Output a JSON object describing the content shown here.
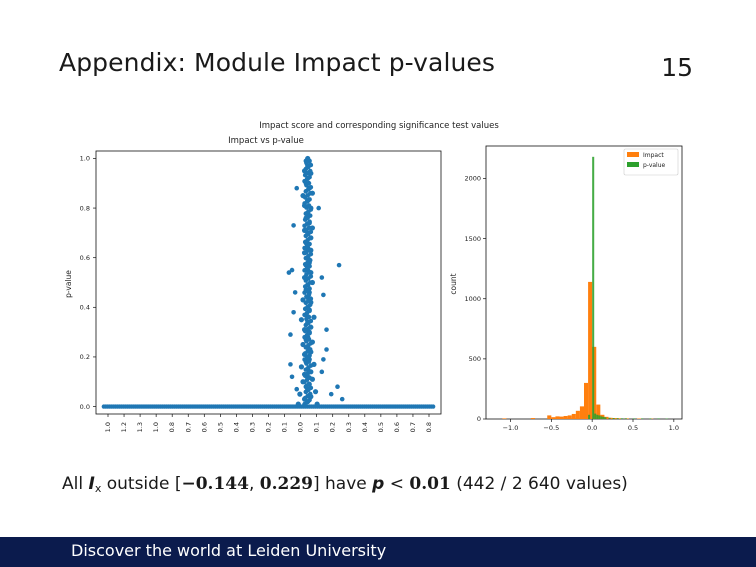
{
  "slide": {
    "title": "Appendix: Module Impact p-values",
    "page_number": "15"
  },
  "caption": {
    "prefix": "All ",
    "var_i": "I",
    "var_sub": "x",
    "mid": " outside ",
    "interval_open": "[",
    "interval_lo": "−0.144",
    "interval_comma": ", ",
    "interval_hi": "0.229",
    "interval_close": "]",
    "have": " have ",
    "var_p": "p",
    "lt": " < ",
    "threshold": "0.01",
    "counts": " (442 / 2 640 values)"
  },
  "footer": {
    "text": "Discover the world at Leiden University"
  },
  "colors": {
    "footer_bg": "#0b1b4d",
    "scatter": "#1f77b4",
    "impact": "#ff7f0e",
    "pvalue": "#2ca02c"
  },
  "chart_data": [
    {
      "type": "scatter",
      "suptitle": "Impact score and corresponding significance test values",
      "title": "Impact vs p-value",
      "xlabel": "",
      "ylabel": "p-value",
      "x_tick_labels": [
        "1.0",
        "1.2",
        "1.3",
        "1.0",
        "0.8",
        "0.7",
        "0.6",
        "0.5",
        "0.4",
        "0.3",
        "0.2",
        "0.1",
        "0.0",
        "0.1",
        "0.2",
        "0.3",
        "0.4",
        "0.5",
        "0.6",
        "0.7",
        "0.8"
      ],
      "y_ticks": [
        0.0,
        0.2,
        0.4,
        0.6,
        0.8,
        1.0
      ],
      "y_tick_labels": [
        "0.0",
        "0.2",
        "0.4",
        "0.6",
        "0.8",
        "1.0"
      ],
      "xlim": [
        -1.35,
        0.85
      ],
      "ylim": [
        -0.03,
        1.03
      ],
      "grid": false,
      "cluster_spine": {
        "x_center": 0.0,
        "points": [
          [
            0.0,
            1.0
          ],
          [
            -0.01,
            0.99
          ],
          [
            0.01,
            0.99
          ],
          [
            0.0,
            0.97
          ],
          [
            -0.02,
            0.95
          ],
          [
            0.02,
            0.94
          ],
          [
            0.0,
            0.92
          ],
          [
            -0.01,
            0.9
          ],
          [
            0.01,
            0.88
          ],
          [
            0.03,
            0.86
          ],
          [
            -0.03,
            0.85
          ],
          [
            0.0,
            0.83
          ],
          [
            -0.02,
            0.81
          ],
          [
            0.02,
            0.8
          ],
          [
            0.0,
            0.78
          ],
          [
            -0.01,
            0.76
          ],
          [
            0.01,
            0.74
          ],
          [
            0.03,
            0.72
          ],
          [
            -0.02,
            0.71
          ],
          [
            0.0,
            0.7
          ],
          [
            0.02,
            0.68
          ],
          [
            -0.01,
            0.66
          ],
          [
            0.0,
            0.64
          ],
          [
            0.02,
            0.63
          ],
          [
            -0.02,
            0.62
          ],
          [
            0.0,
            0.6
          ],
          [
            0.01,
            0.58
          ],
          [
            -0.01,
            0.57
          ],
          [
            0.0,
            0.55
          ],
          [
            0.02,
            0.54
          ],
          [
            -0.02,
            0.52
          ],
          [
            0.03,
            0.5
          ],
          [
            0.0,
            0.49
          ],
          [
            -0.01,
            0.47
          ],
          [
            0.01,
            0.46
          ],
          [
            0.0,
            0.44
          ],
          [
            -0.03,
            0.43
          ],
          [
            0.02,
            0.42
          ],
          [
            0.0,
            0.4
          ],
          [
            0.01,
            0.39
          ],
          [
            -0.01,
            0.37
          ],
          [
            0.04,
            0.36
          ],
          [
            -0.04,
            0.35
          ],
          [
            0.0,
            0.34
          ],
          [
            0.02,
            0.32
          ],
          [
            -0.02,
            0.31
          ],
          [
            0.01,
            0.3
          ],
          [
            0.0,
            0.28
          ],
          [
            -0.01,
            0.27
          ],
          [
            0.03,
            0.26
          ],
          [
            -0.03,
            0.25
          ],
          [
            0.0,
            0.24
          ],
          [
            0.02,
            0.22
          ],
          [
            -0.02,
            0.21
          ],
          [
            0.0,
            0.2
          ],
          [
            0.01,
            0.19
          ],
          [
            -0.01,
            0.18
          ],
          [
            0.04,
            0.17
          ],
          [
            -0.04,
            0.16
          ],
          [
            0.0,
            0.15
          ],
          [
            0.02,
            0.14
          ],
          [
            -0.02,
            0.13
          ],
          [
            0.0,
            0.12
          ],
          [
            0.03,
            0.11
          ],
          [
            -0.03,
            0.1
          ],
          [
            0.01,
            0.09
          ],
          [
            -0.01,
            0.08
          ],
          [
            0.0,
            0.07
          ],
          [
            0.05,
            0.06
          ],
          [
            -0.05,
            0.05
          ],
          [
            0.02,
            0.04
          ],
          [
            -0.02,
            0.03
          ],
          [
            0.0,
            0.02
          ],
          [
            0.06,
            0.01
          ],
          [
            -0.06,
            0.01
          ]
        ]
      },
      "outliers": [
        [
          -0.07,
          0.88
        ],
        [
          0.07,
          0.8
        ],
        [
          -0.09,
          0.73
        ],
        [
          -0.1,
          0.55
        ],
        [
          0.09,
          0.52
        ],
        [
          0.2,
          0.57
        ],
        [
          -0.12,
          0.54
        ],
        [
          0.1,
          0.45
        ],
        [
          -0.08,
          0.46
        ],
        [
          -0.09,
          0.38
        ],
        [
          0.12,
          0.31
        ],
        [
          -0.11,
          0.29
        ],
        [
          0.12,
          0.23
        ],
        [
          0.1,
          0.19
        ],
        [
          -0.11,
          0.17
        ],
        [
          0.09,
          0.14
        ],
        [
          -0.1,
          0.12
        ],
        [
          0.19,
          0.08
        ],
        [
          -0.07,
          0.07
        ],
        [
          0.15,
          0.05
        ],
        [
          0.22,
          0.03
        ]
      ],
      "baseline_y": 0.0,
      "baseline_x_range": [
        -1.3,
        0.8
      ]
    },
    {
      "type": "bar",
      "title": "",
      "xlabel": "",
      "ylabel": "count",
      "x_ticks": [
        -1.0,
        -0.5,
        0.0,
        0.5,
        1.0
      ],
      "x_tick_labels": [
        "−1.0",
        "−0.5",
        "0.0",
        "0.5",
        "1.0"
      ],
      "y_ticks": [
        0,
        500,
        1000,
        1500,
        2000
      ],
      "y_tick_labels": [
        "0",
        "500",
        "1000",
        "1500",
        "2000"
      ],
      "xlim": [
        -1.3,
        1.1
      ],
      "ylim": [
        0,
        2270
      ],
      "legend_position": "top-right",
      "series": [
        {
          "name": "Impact",
          "bin_width": 0.05,
          "bins": [
            [
              -1.1,
              5
            ],
            [
              -0.75,
              8
            ],
            [
              -0.55,
              30
            ],
            [
              -0.5,
              15
            ],
            [
              -0.45,
              22
            ],
            [
              -0.4,
              20
            ],
            [
              -0.35,
              25
            ],
            [
              -0.3,
              30
            ],
            [
              -0.25,
              42
            ],
            [
              -0.2,
              68
            ],
            [
              -0.15,
              105
            ],
            [
              -0.1,
              300
            ],
            [
              -0.05,
              1140
            ],
            [
              0.0,
              600
            ],
            [
              0.05,
              120
            ],
            [
              0.1,
              35
            ],
            [
              0.15,
              18
            ],
            [
              0.2,
              10
            ],
            [
              0.25,
              8
            ],
            [
              0.3,
              6
            ],
            [
              0.4,
              5
            ],
            [
              0.55,
              4
            ],
            [
              0.7,
              3
            ]
          ]
        },
        {
          "name": "p-value",
          "bin_width": 0.025,
          "bins": [
            [
              -0.05,
              35
            ],
            [
              0.0,
              2180
            ],
            [
              0.025,
              45
            ],
            [
              0.05,
              35
            ],
            [
              0.075,
              30
            ],
            [
              0.1,
              22
            ],
            [
              0.125,
              18
            ],
            [
              0.15,
              14
            ],
            [
              0.2,
              10
            ],
            [
              0.25,
              8
            ],
            [
              0.3,
              7
            ],
            [
              0.35,
              6
            ],
            [
              0.4,
              6
            ],
            [
              0.5,
              5
            ],
            [
              0.6,
              5
            ],
            [
              0.7,
              5
            ],
            [
              0.8,
              5
            ],
            [
              0.9,
              4
            ]
          ]
        }
      ]
    }
  ]
}
